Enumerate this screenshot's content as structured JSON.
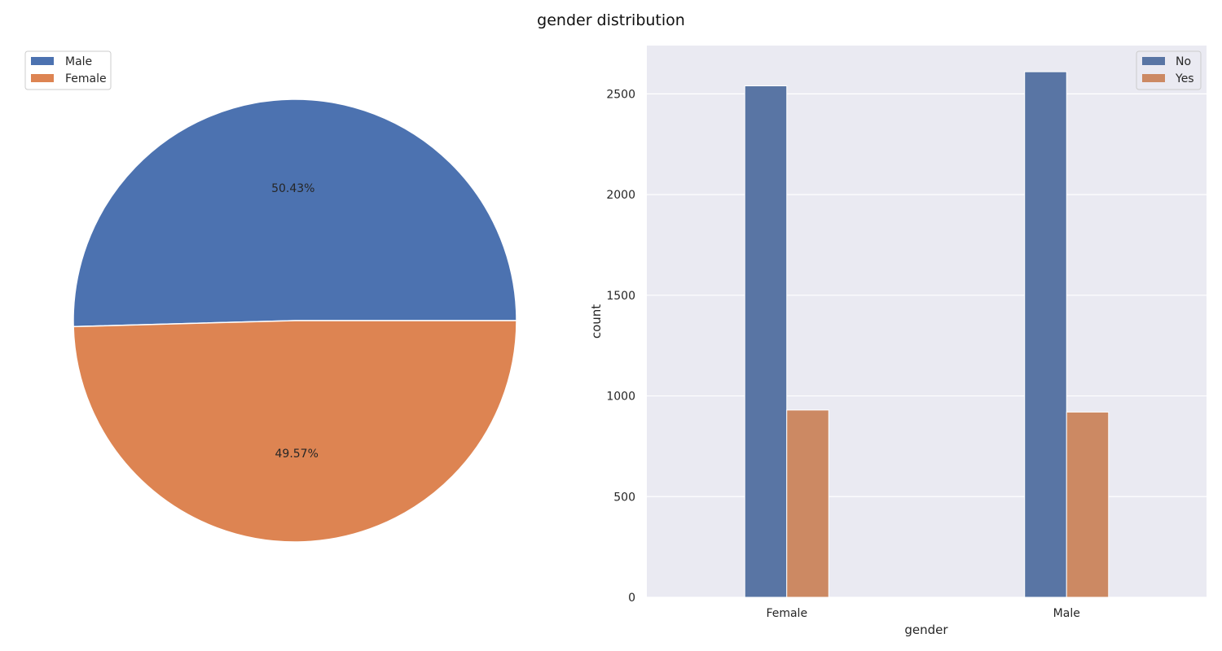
{
  "figure": {
    "suptitle": "gender distribution"
  },
  "chart_data": [
    {
      "type": "pie",
      "labels": [
        "Male",
        "Female"
      ],
      "values": [
        50.43,
        49.57
      ],
      "value_labels": [
        "50.43%",
        "49.57%"
      ],
      "colors": [
        "#4c72b0",
        "#dd8452"
      ],
      "legend_position": "upper-left"
    },
    {
      "type": "bar",
      "xlabel": "gender",
      "ylabel": "count",
      "categories": [
        "Female",
        "Male"
      ],
      "series": [
        {
          "name": "No",
          "values": [
            2540,
            2610
          ],
          "color": "#5975a4"
        },
        {
          "name": "Yes",
          "values": [
            930,
            920
          ],
          "color": "#cc8963"
        }
      ],
      "ylim": [
        0,
        2740
      ],
      "yticks": [
        0,
        500,
        1000,
        1500,
        2000,
        2500
      ],
      "grid": true,
      "legend_position": "top-right"
    }
  ]
}
